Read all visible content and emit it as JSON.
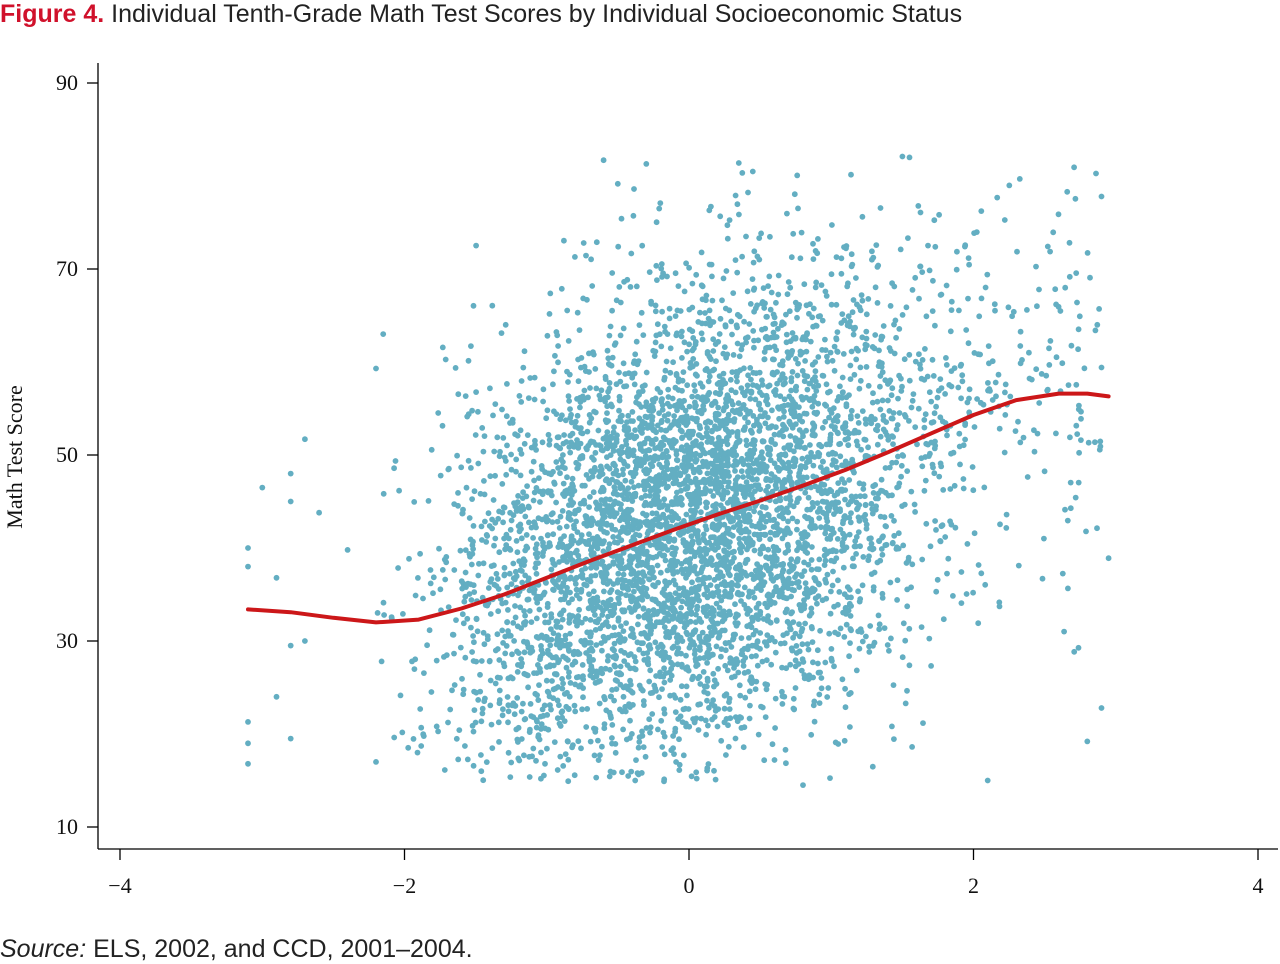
{
  "figure": {
    "label": "Figure 4.",
    "title": "Individual Tenth-Grade Math Test Scores by Individual Socioeconomic Status"
  },
  "source": {
    "label": "Source:",
    "text": "ELS, 2002, and CCD, 2001–2004."
  },
  "colors": {
    "points": "#63aec2",
    "fit_line": "#cc1719",
    "figure_label": "#d0112b"
  },
  "chart_data": {
    "type": "scatter",
    "title": "Individual Tenth-Grade Math Test Scores by Individual Socioeconomic Status",
    "xlabel": "",
    "ylabel": "Math Test Score",
    "xlim": [
      -4.0,
      4.0
    ],
    "ylim": [
      10,
      90
    ],
    "x_ticks": [
      -4,
      -2,
      0,
      2,
      4
    ],
    "x_tick_labels": [
      "−4",
      "−2",
      "0",
      "2",
      "4"
    ],
    "y_ticks": [
      10,
      30,
      50,
      70,
      90
    ],
    "y_tick_labels": [
      "10",
      "30",
      "50",
      "70",
      "90"
    ],
    "grid": false,
    "legend": "none",
    "scatter_note": "Several thousand individual student points, densest between SES −1 and 1 and scores 20–65",
    "notable_points": [
      {
        "x": -3.1,
        "y": 40.0
      },
      {
        "x": -3.1,
        "y": 38.0
      },
      {
        "x": -3.1,
        "y": 21.3
      },
      {
        "x": -3.1,
        "y": 19.0
      },
      {
        "x": -3.1,
        "y": 16.8
      },
      {
        "x": -3.0,
        "y": 46.5
      },
      {
        "x": -2.9,
        "y": 36.8
      },
      {
        "x": -2.9,
        "y": 24.0
      },
      {
        "x": -2.8,
        "y": 48.0
      },
      {
        "x": -2.8,
        "y": 45.0
      },
      {
        "x": -2.8,
        "y": 29.5
      },
      {
        "x": -2.8,
        "y": 19.5
      },
      {
        "x": -2.7,
        "y": 51.7
      },
      {
        "x": -2.7,
        "y": 30.0
      },
      {
        "x": -2.6,
        "y": 43.8
      },
      {
        "x": -2.4,
        "y": 39.8
      },
      {
        "x": -2.2,
        "y": 59.3
      },
      {
        "x": -2.2,
        "y": 17.0
      },
      {
        "x": -2.15,
        "y": 63.0
      },
      {
        "x": -0.6,
        "y": 81.7
      },
      {
        "x": -0.3,
        "y": 81.3
      },
      {
        "x": 0.35,
        "y": 81.4
      },
      {
        "x": 1.5,
        "y": 82.1
      },
      {
        "x": 1.55,
        "y": 82.0
      },
      {
        "x": 2.1,
        "y": 15.0
      },
      {
        "x": 2.9,
        "y": 77.8
      },
      {
        "x": 2.95,
        "y": 38.9
      },
      {
        "x": 2.8,
        "y": 19.2
      },
      {
        "x": 2.9,
        "y": 22.8
      }
    ],
    "series": [
      {
        "type": "line",
        "x": [
          -3.1,
          -2.8,
          -2.5,
          -2.2,
          -1.9,
          -1.6,
          -1.3,
          -1.0,
          -0.7,
          -0.4,
          -0.1,
          0.2,
          0.5,
          0.8,
          1.1,
          1.4,
          1.7,
          2.0,
          2.3,
          2.6,
          2.8,
          2.95
        ],
        "y": [
          33.4,
          33.1,
          32.5,
          32.0,
          32.3,
          33.5,
          35.0,
          36.8,
          38.6,
          40.3,
          42.0,
          43.6,
          45.1,
          46.7,
          48.4,
          50.3,
          52.3,
          54.3,
          55.9,
          56.6,
          56.6,
          56.3
        ]
      }
    ]
  }
}
